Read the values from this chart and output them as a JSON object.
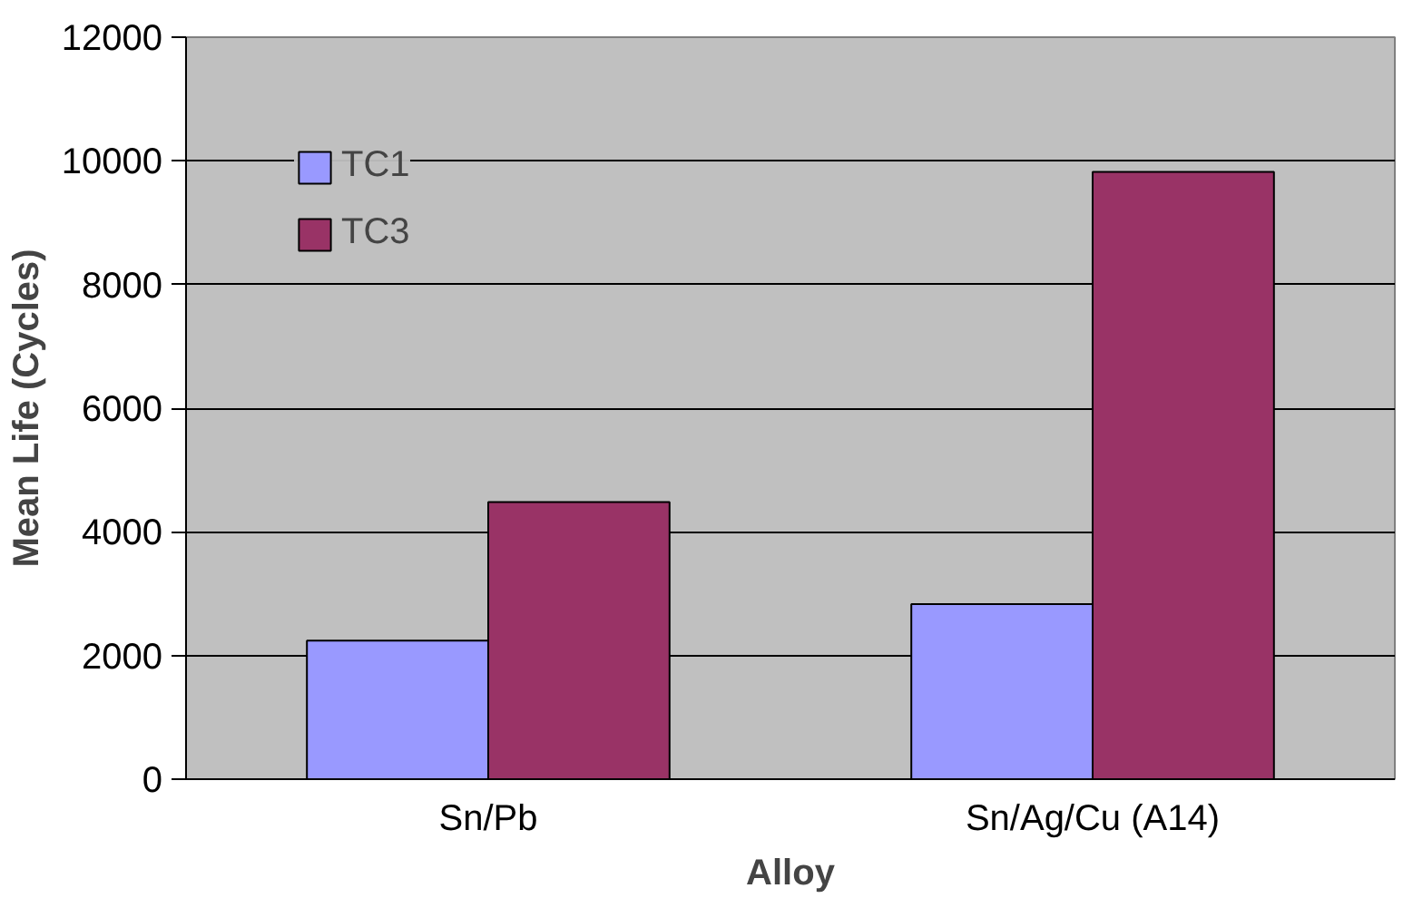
{
  "chart_data": {
    "type": "bar",
    "xlabel": "Alloy",
    "ylabel": "Mean Life (Cycles)",
    "categories": [
      "Sn/Pb",
      "Sn/Ag/Cu (A14)"
    ],
    "series": [
      {
        "name": "TC1",
        "color": "#9999ff",
        "values": [
          2240,
          2830
        ]
      },
      {
        "name": "TC3",
        "color": "#993366",
        "values": [
          4480,
          9820
        ]
      }
    ],
    "ylim": [
      0,
      12000
    ],
    "yticks": [
      0,
      2000,
      4000,
      6000,
      8000,
      10000,
      12000
    ],
    "grid": "y",
    "legend": "top left"
  }
}
